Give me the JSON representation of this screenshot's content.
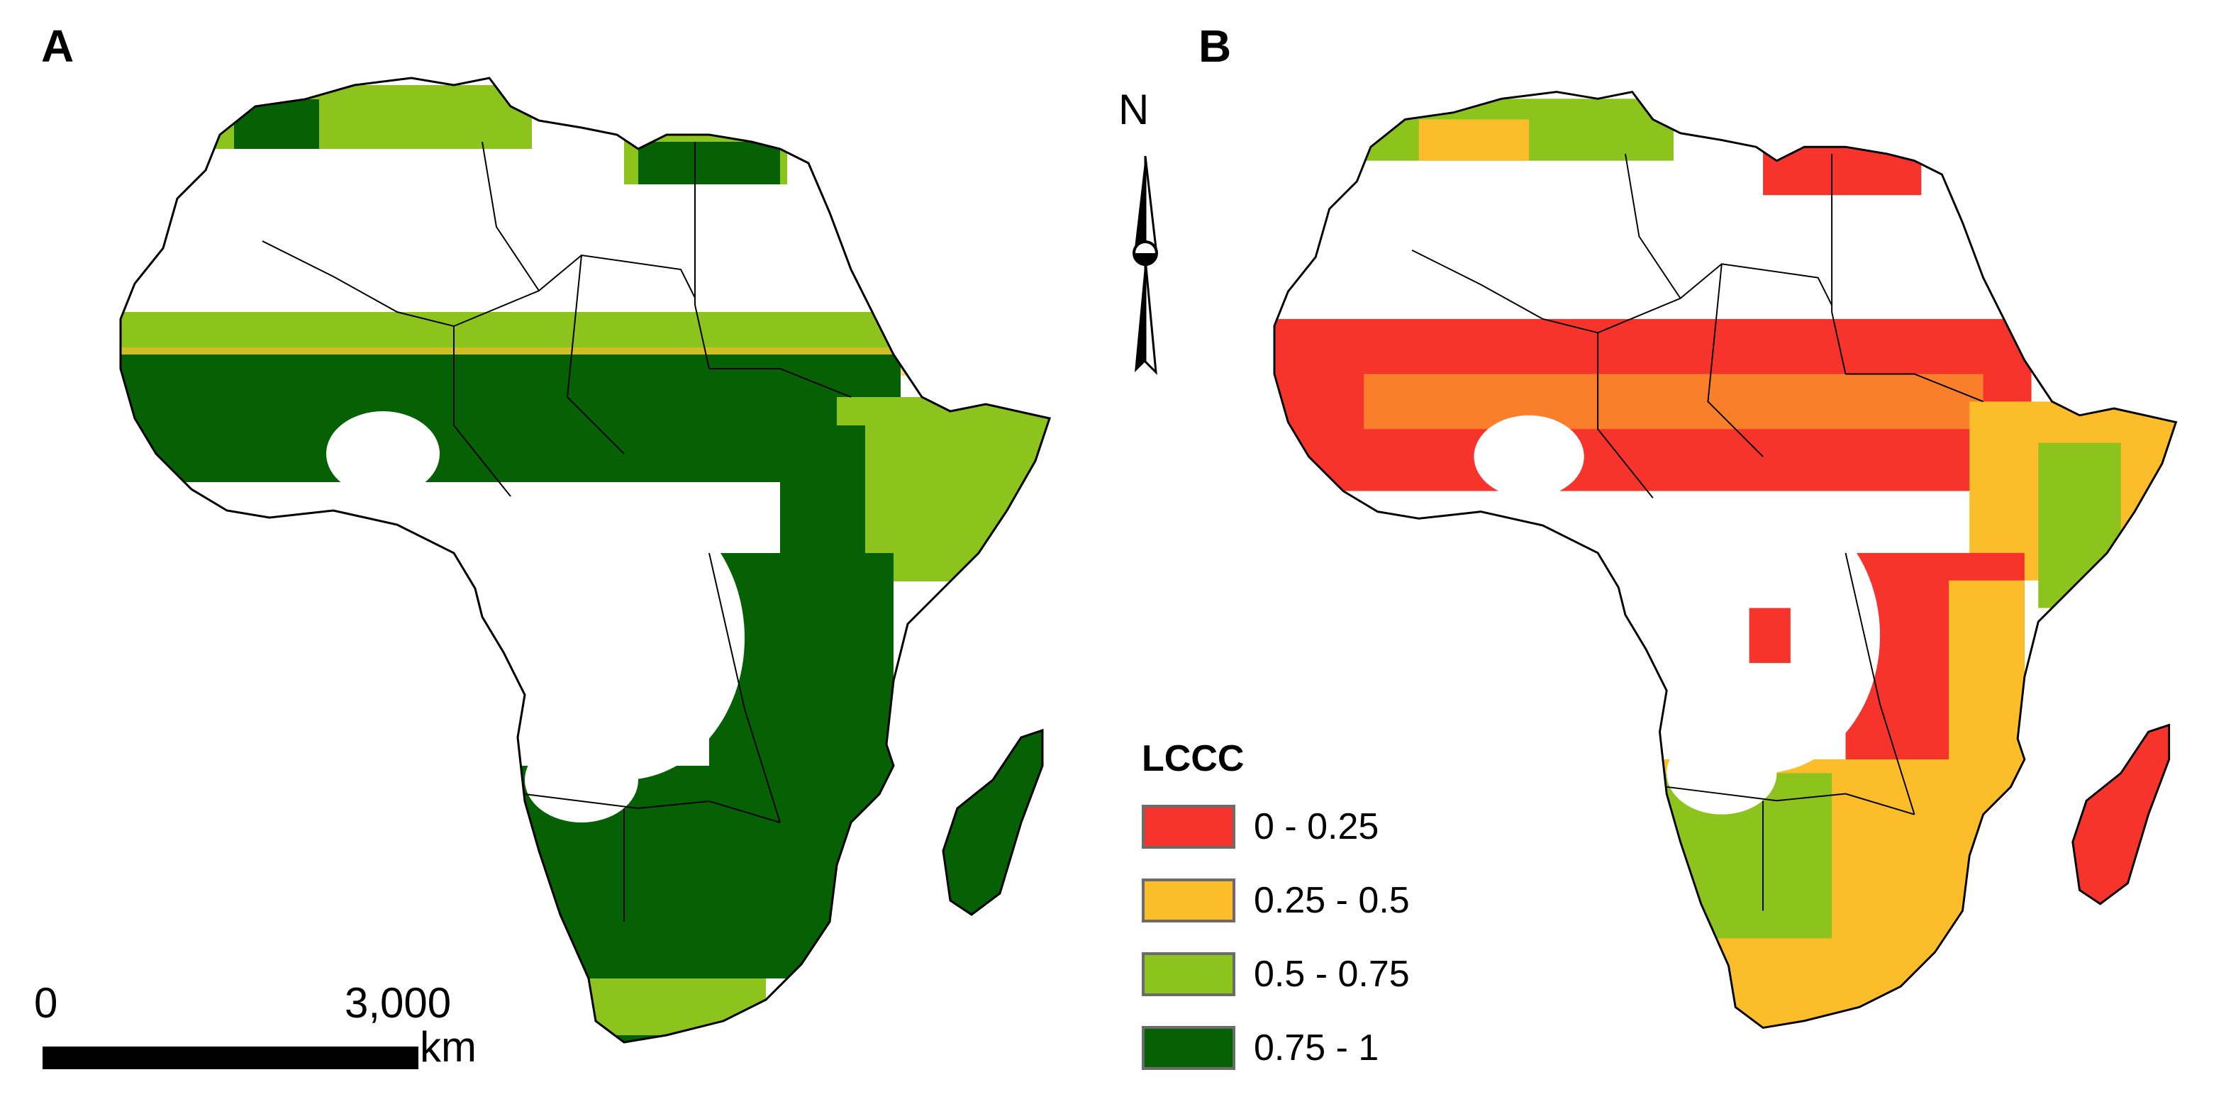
{
  "panels": [
    {
      "label": "A",
      "description_key": "panel-a"
    },
    {
      "label": "B",
      "description_key": "panel-b"
    }
  ],
  "north_arrow": {
    "letter": "N"
  },
  "scale_bar": {
    "start": "0",
    "end": "3,000",
    "unit": "km"
  },
  "legend": {
    "title": "LCCC",
    "items": [
      {
        "label": "0 - 0.25",
        "color": "#f7342b"
      },
      {
        "label": "0.25 - 0.5",
        "color": "#fcbd2a"
      },
      {
        "label": "0.5 - 0.75",
        "color": "#8cc41d"
      },
      {
        "label": "0.75 - 1",
        "color": "#066105"
      }
    ]
  },
  "colors": {
    "red": "#f7342b",
    "orange": "#fcbd2a",
    "light_green": "#8cc41d",
    "dark_green": "#066105",
    "border": "#000000"
  }
}
